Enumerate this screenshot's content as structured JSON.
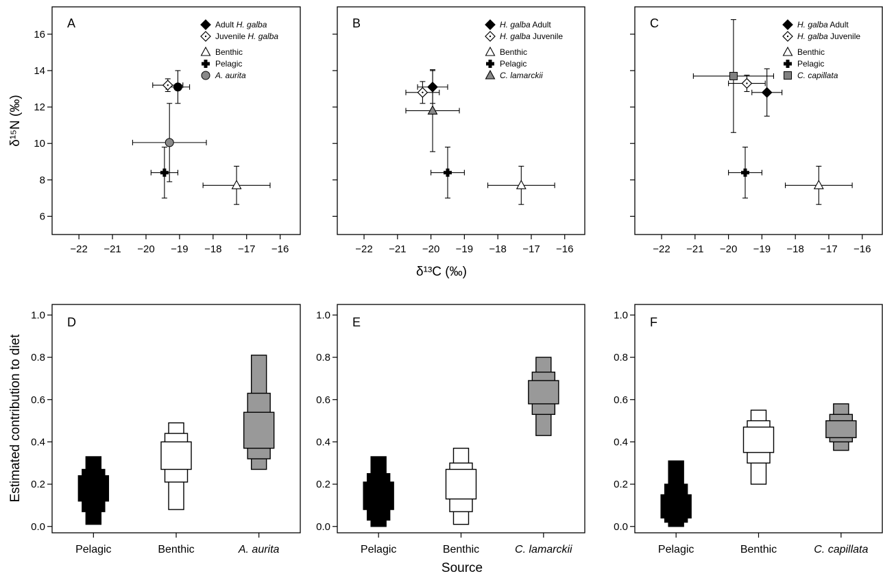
{
  "shared": {
    "x_title_top": "δ¹³C (‰)",
    "y_title_top": "δ¹⁵N (‰)",
    "x_title_bottom": "Source",
    "y_title_bottom": "Estimated contribution to diet"
  },
  "chart_data": [
    {
      "panel": "A",
      "type": "scatter",
      "xlim": [
        -22.8,
        -15.4
      ],
      "ylim": [
        5,
        17.5
      ],
      "xticks": [
        -22,
        -21,
        -20,
        -19,
        -18,
        -17,
        -16
      ],
      "yticks": [
        6,
        8,
        10,
        12,
        14,
        16
      ],
      "yticklabels": [
        "6",
        "8",
        "10",
        "12",
        "14",
        "16"
      ],
      "legend": [
        {
          "marker": "diamond-filled",
          "text": "Adult ",
          "italic": "H. galba",
          "order": "plain-first"
        },
        {
          "marker": "diamond-open",
          "text": "Juvenile ",
          "italic": "H. galba",
          "order": "plain-first"
        },
        {
          "marker": "triangle-open",
          "text": "Benthic",
          "italic": "",
          "order": "plain-first"
        },
        {
          "marker": "cross-filled",
          "text": "Pelagic",
          "italic": "",
          "order": "plain-first"
        },
        {
          "marker": "circle-gray",
          "text": "",
          "italic": "A. aurita",
          "order": "italic-first"
        }
      ],
      "points": [
        {
          "marker": "triangle-open",
          "x": -17.3,
          "y": 7.7,
          "xerr": 1.0,
          "yerr": 1.05
        },
        {
          "marker": "cross-filled",
          "x": -19.45,
          "y": 8.4,
          "xerr": 0.4,
          "yerr": 1.4
        },
        {
          "marker": "circle-gray",
          "x": -19.3,
          "y": 10.05,
          "xerr": 1.1,
          "yerr": 2.15
        },
        {
          "marker": "circle-filled",
          "x": -19.05,
          "y": 13.1,
          "xerr": 0.35,
          "yerr": 0.9
        },
        {
          "marker": "diamond-open",
          "x": -19.35,
          "y": 13.2,
          "xerr": 0.45,
          "yerr": 0.35
        }
      ]
    },
    {
      "panel": "B",
      "type": "scatter",
      "xlim": [
        -22.8,
        -15.4
      ],
      "ylim": [
        5,
        17.5
      ],
      "xticks": [
        -22,
        -21,
        -20,
        -19,
        -18,
        -17,
        -16
      ],
      "yticks": [
        6,
        8,
        10,
        12,
        14,
        16
      ],
      "yticklabels": [
        "",
        "",
        "",
        "",
        "",
        ""
      ],
      "legend": [
        {
          "marker": "diamond-filled",
          "text": " Adult",
          "italic": "H. galba",
          "order": "italic-first"
        },
        {
          "marker": "diamond-open",
          "text": " Juvenile",
          "italic": "H. galba",
          "order": "italic-first"
        },
        {
          "marker": "triangle-open",
          "text": "Benthic",
          "italic": "",
          "order": "plain-first"
        },
        {
          "marker": "cross-filled",
          "text": "Pelagic",
          "italic": "",
          "order": "plain-first"
        },
        {
          "marker": "triangle-gray",
          "text": "",
          "italic": "C. lamarckii",
          "order": "italic-first"
        }
      ],
      "points": [
        {
          "marker": "triangle-open",
          "x": -17.3,
          "y": 7.7,
          "xerr": 1.0,
          "yerr": 1.05
        },
        {
          "marker": "cross-filled",
          "x": -19.5,
          "y": 8.4,
          "xerr": 0.5,
          "yerr": 1.4
        },
        {
          "marker": "triangle-gray",
          "x": -19.95,
          "y": 11.8,
          "xerr": 0.8,
          "yerr": 2.25
        },
        {
          "marker": "diamond-filled",
          "x": -19.95,
          "y": 13.1,
          "xerr": 0.45,
          "yerr": 0.9
        },
        {
          "marker": "diamond-open",
          "x": -20.25,
          "y": 12.8,
          "xerr": 0.5,
          "yerr": 0.6
        }
      ]
    },
    {
      "panel": "C",
      "type": "scatter",
      "xlim": [
        -22.8,
        -15.4
      ],
      "ylim": [
        5,
        17.5
      ],
      "xticks": [
        -22,
        -21,
        -20,
        -19,
        -18,
        -17,
        -16
      ],
      "yticks": [
        6,
        8,
        10,
        12,
        14,
        16
      ],
      "yticklabels": [
        "",
        "",
        "",
        "",
        "",
        ""
      ],
      "legend": [
        {
          "marker": "diamond-filled",
          "text": " Adult",
          "italic": "H. galba",
          "order": "italic-first"
        },
        {
          "marker": "diamond-open",
          "text": " Juvenile",
          "italic": "H. galba",
          "order": "italic-first"
        },
        {
          "marker": "triangle-open",
          "text": "Benthic",
          "italic": "",
          "order": "plain-first"
        },
        {
          "marker": "cross-filled",
          "text": "Pelagic",
          "italic": "",
          "order": "plain-first"
        },
        {
          "marker": "square-gray",
          "text": "",
          "italic": "C. capillata",
          "order": "italic-first"
        }
      ],
      "points": [
        {
          "marker": "triangle-open",
          "x": -17.3,
          "y": 7.7,
          "xerr": 1.0,
          "yerr": 1.05
        },
        {
          "marker": "cross-filled",
          "x": -19.5,
          "y": 8.4,
          "xerr": 0.5,
          "yerr": 1.4
        },
        {
          "marker": "square-gray",
          "x": -19.85,
          "y": 13.7,
          "xerr": 1.2,
          "yerr": 3.1
        },
        {
          "marker": "diamond-filled",
          "x": -18.85,
          "y": 12.8,
          "xerr": 0.45,
          "yerr": 1.3
        },
        {
          "marker": "diamond-open",
          "x": -19.45,
          "y": 13.3,
          "xerr": 0.55,
          "yerr": 0.45
        }
      ]
    },
    {
      "panel": "D",
      "type": "boxplot-credible-intervals",
      "ylim": [
        -0.03,
        1.05
      ],
      "yticks": [
        0,
        0.2,
        0.4,
        0.6,
        0.8,
        1.0
      ],
      "yticklabels": [
        "0.0",
        "0.2",
        "0.4",
        "0.6",
        "0.8",
        "1.0"
      ],
      "categories": [
        {
          "label": "Pelagic",
          "italic": false,
          "fill": "#000000",
          "ci95": [
            0.01,
            0.33
          ],
          "ci75": [
            0.07,
            0.27
          ],
          "ci50": [
            0.12,
            0.24
          ]
        },
        {
          "label": "Benthic",
          "italic": false,
          "fill": "#ffffff",
          "ci95": [
            0.08,
            0.49
          ],
          "ci75": [
            0.21,
            0.44
          ],
          "ci50": [
            0.27,
            0.4
          ]
        },
        {
          "label": "A. aurita",
          "italic": true,
          "fill": "#999999",
          "ci95": [
            0.27,
            0.81
          ],
          "ci75": [
            0.32,
            0.63
          ],
          "ci50": [
            0.37,
            0.54
          ]
        }
      ]
    },
    {
      "panel": "E",
      "type": "boxplot-credible-intervals",
      "ylim": [
        -0.03,
        1.05
      ],
      "yticks": [
        0,
        0.2,
        0.4,
        0.6,
        0.8,
        1.0
      ],
      "yticklabels": [
        "0.0",
        "0.2",
        "0.4",
        "0.6",
        "0.8",
        "1.0"
      ],
      "categories": [
        {
          "label": "Pelagic",
          "italic": false,
          "fill": "#000000",
          "ci95": [
            0.0,
            0.33
          ],
          "ci75": [
            0.03,
            0.25
          ],
          "ci50": [
            0.08,
            0.21
          ]
        },
        {
          "label": "Benthic",
          "italic": false,
          "fill": "#ffffff",
          "ci95": [
            0.01,
            0.37
          ],
          "ci75": [
            0.07,
            0.3
          ],
          "ci50": [
            0.13,
            0.27
          ]
        },
        {
          "label": "C. lamarckii",
          "italic": true,
          "fill": "#999999",
          "ci95": [
            0.43,
            0.8
          ],
          "ci75": [
            0.53,
            0.73
          ],
          "ci50": [
            0.58,
            0.69
          ]
        }
      ]
    },
    {
      "panel": "F",
      "type": "boxplot-credible-intervals",
      "ylim": [
        -0.03,
        1.05
      ],
      "yticks": [
        0,
        0.2,
        0.4,
        0.6,
        0.8,
        1.0
      ],
      "yticklabels": [
        "0.0",
        "0.2",
        "0.4",
        "0.6",
        "0.8",
        "1.0"
      ],
      "categories": [
        {
          "label": "Pelagic",
          "italic": false,
          "fill": "#000000",
          "ci95": [
            0.0,
            0.31
          ],
          "ci75": [
            0.02,
            0.2
          ],
          "ci50": [
            0.04,
            0.15
          ]
        },
        {
          "label": "Benthic",
          "italic": false,
          "fill": "#ffffff",
          "ci95": [
            0.2,
            0.55
          ],
          "ci75": [
            0.3,
            0.5
          ],
          "ci50": [
            0.35,
            0.47
          ]
        },
        {
          "label": "C. capillata",
          "italic": true,
          "fill": "#999999",
          "ci95": [
            0.36,
            0.58
          ],
          "ci75": [
            0.4,
            0.53
          ],
          "ci50": [
            0.42,
            0.5
          ]
        }
      ]
    }
  ]
}
